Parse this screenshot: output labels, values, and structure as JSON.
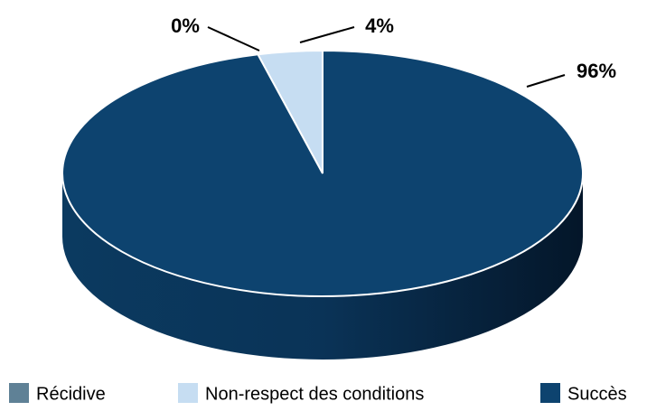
{
  "chart_data": {
    "type": "pie",
    "categories": [
      "Récidive",
      "Non-respect des conditions",
      "Succès"
    ],
    "values": [
      0,
      4,
      96
    ],
    "value_labels": [
      "0%",
      "4%",
      "96%"
    ],
    "colors": [
      "#5f8196",
      "#c6ddf2",
      "#0d436f"
    ],
    "legend": "bottom"
  }
}
